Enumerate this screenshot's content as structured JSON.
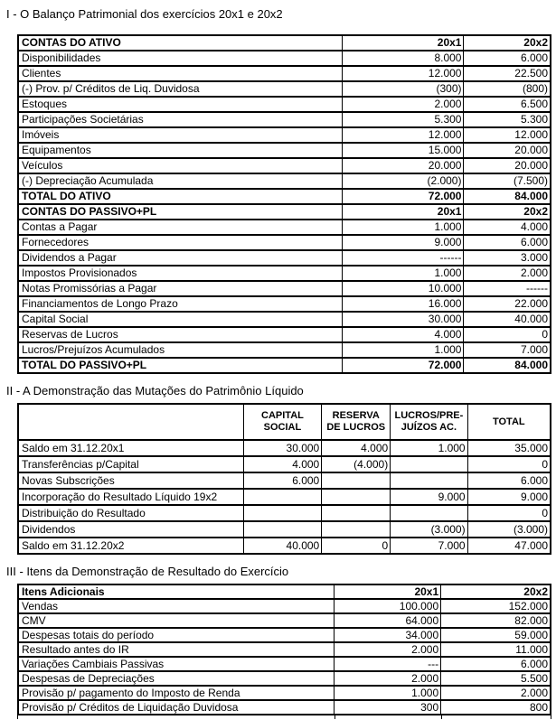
{
  "page": {
    "background": "#ffffff",
    "text_color": "#000000",
    "border_color": "#000000"
  },
  "sections": [
    {
      "title": "I - O Balanço Patrimonial dos exercícios 20x1 e 20x2",
      "table": {
        "columns": [
          "CONTAS DO ATIVO",
          "20x1",
          "20x2"
        ],
        "header_style": "inline",
        "rows": [
          {
            "cells": [
              "Disponibilidades",
              "8.000",
              "6.000"
            ]
          },
          {
            "cells": [
              "Clientes",
              "12.000",
              "22.500"
            ]
          },
          {
            "cells": [
              "(-) Prov. p/ Créditos de Liq. Duvidosa",
              "(300)",
              "(800)"
            ]
          },
          {
            "cells": [
              "Estoques",
              "2.000",
              "6.500"
            ]
          },
          {
            "cells": [
              "Participações Societárias",
              "5.300",
              "5.300"
            ]
          },
          {
            "cells": [
              "Imóveis",
              "12.000",
              "12.000"
            ]
          },
          {
            "cells": [
              "Equipamentos",
              "15.000",
              "20.000"
            ]
          },
          {
            "cells": [
              "Veículos",
              "20.000",
              "20.000"
            ]
          },
          {
            "cells": [
              "(-) Depreciação Acumulada",
              "(2.000)",
              "(7.500)"
            ]
          },
          {
            "cells": [
              "TOTAL DO ATIVO",
              "72.000",
              "84.000"
            ],
            "bold": true
          },
          {
            "cells": [
              "CONTAS DO PASSIVO+PL",
              "20x1",
              "20x2"
            ],
            "bold": true
          },
          {
            "cells": [
              "Contas a Pagar",
              "1.000",
              "4.000"
            ]
          },
          {
            "cells": [
              "Fornecedores",
              "9.000",
              "6.000"
            ]
          },
          {
            "cells": [
              "Dividendos a Pagar",
              "------",
              "3.000"
            ]
          },
          {
            "cells": [
              "Impostos Provisionados",
              "1.000",
              "2.000"
            ]
          },
          {
            "cells": [
              "Notas Promissórias a Pagar",
              "10.000",
              "------"
            ]
          },
          {
            "cells": [
              "Financiamentos de Longo Prazo",
              "16.000",
              "22.000"
            ]
          },
          {
            "cells": [
              "Capital Social",
              "30.000",
              "40.000"
            ]
          },
          {
            "cells": [
              "Reservas de Lucros",
              "4.000",
              "0"
            ]
          },
          {
            "cells": [
              "Lucros/Prejuízos Acumulados",
              "1.000",
              "7.000"
            ]
          },
          {
            "cells": [
              "TOTAL DO PASSIVO+PL",
              "72.000",
              "84.000"
            ],
            "bold": true
          }
        ]
      }
    },
    {
      "title": "II - A Demonstração das Mutações do Patrimônio Líquido",
      "table": {
        "columns": [
          "",
          "CAPITAL\nSOCIAL",
          "RESERVA\nDE LUCROS",
          "LUCROS/PRE-\nJUÍZOS AC.",
          "TOTAL"
        ],
        "header_style": "centered",
        "rows": [
          {
            "cells": [
              "Saldo em 31.12.20x1",
              "30.000",
              "4.000",
              "1.000",
              "35.000"
            ]
          },
          {
            "cells": [
              "Transferências p/Capital",
              "4.000",
              "(4.000)",
              "",
              "0"
            ]
          },
          {
            "cells": [
              "Novas Subscrições",
              "6.000",
              "",
              "",
              "6.000"
            ]
          },
          {
            "cells": [
              "Incorporação do Resultado Líquido 19x2",
              "",
              "",
              "9.000",
              "9.000"
            ]
          },
          {
            "cells": [
              "Distribuição do Resultado",
              "",
              "",
              "",
              "0"
            ]
          },
          {
            "cells": [
              "Dividendos",
              "",
              "",
              "(3.000)",
              "(3.000)"
            ]
          },
          {
            "cells": [
              "Saldo em 31.12.20x2",
              "40.000",
              "0",
              "7.000",
              "47.000"
            ]
          }
        ]
      }
    },
    {
      "title": "III - Itens da Demonstração de Resultado do Exercício",
      "table": {
        "columns": [
          "Itens Adicionais",
          "20x1",
          "20x2"
        ],
        "header_style": "inline",
        "rows": [
          {
            "cells": [
              "Vendas",
              "100.000",
              "152.000"
            ]
          },
          {
            "cells": [
              "CMV",
              "64.000",
              "82.000"
            ]
          },
          {
            "cells": [
              "Despesas totais do período",
              "34.000",
              "59.000"
            ]
          },
          {
            "cells": [
              "Resultado antes do IR",
              "2.000",
              "11.000"
            ]
          },
          {
            "cells": [
              "Variações Cambiais Passivas",
              "---",
              "6.000"
            ]
          },
          {
            "cells": [
              "Despesas de Depreciações",
              "2.000",
              "5.500"
            ]
          },
          {
            "cells": [
              "Provisão p/ pagamento do Imposto de Renda",
              "1.000",
              "2.000"
            ]
          },
          {
            "cells": [
              "Provisão p/ Créditos de Liquidação Duvidosa",
              "300",
              "800"
            ]
          }
        ]
      }
    }
  ]
}
